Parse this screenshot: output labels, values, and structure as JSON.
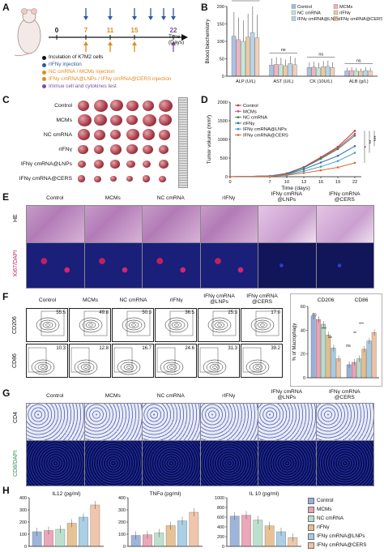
{
  "panels": {
    "A": "A",
    "B": "B",
    "C": "C",
    "D": "D",
    "E": "E",
    "F": "F",
    "G": "G",
    "H": "H"
  },
  "panelA": {
    "days": [
      "0",
      "7",
      "11",
      "15",
      "22"
    ],
    "axis_label": "Time\n(Days)",
    "time_label": "Time",
    "days_label": "(Days)",
    "legend": [
      {
        "text": "Inculation of K7M2 cells",
        "color": "#111111"
      },
      {
        "text": "rIFNγ injection",
        "color": "#2a5c9a"
      },
      {
        "text": "NC cmRNA / MCMs injection",
        "color": "#e38a1b"
      },
      {
        "text": "IFNγ cmRNA@LNPs / IFNγ cmRNA@CERS injection",
        "color": "#e38a1b"
      },
      {
        "text": "Immue cell and cytokines test",
        "color": "#7b4fa0"
      }
    ]
  },
  "groups": [
    "Control",
    "MCMs",
    "NC cmRNA",
    "rIFNγ",
    "IFNγ cmRNA@LNPs",
    "IFNγ cmRNA@CERS"
  ],
  "groupColors": [
    "#6a8fc9",
    "#e07a95",
    "#9ad0b5",
    "#d9a25c",
    "#7fb6d8",
    "#e8a97f"
  ],
  "panelB": {
    "ylabel": "Blood biochemistry",
    "legend": [
      "Control",
      "MCMs",
      "NC cmRNA",
      "rIFNγ",
      "IFNγ cmRNA@LNPs",
      "IFNγ cmRNA@CERS"
    ],
    "categories": [
      "ALP (U/L)",
      "AST (U/L)",
      "CK (10U/L)",
      "ALB (g/L)"
    ],
    "yticks": [
      "0",
      "50",
      "100",
      "150",
      "200"
    ],
    "ns": "ns",
    "chart_data": {
      "type": "bar",
      "categories": [
        "ALP",
        "AST",
        "CK",
        "ALB"
      ],
      "ylim": [
        0,
        200
      ],
      "series": [
        {
          "name": "Control",
          "values": [
            115,
            32,
            25,
            15
          ]
        },
        {
          "name": "MCMs",
          "values": [
            105,
            34,
            26,
            16
          ]
        },
        {
          "name": "NC cmRNA",
          "values": [
            100,
            33,
            24,
            15
          ]
        },
        {
          "name": "rIFNγ",
          "values": [
            112,
            30,
            27,
            14
          ]
        },
        {
          "name": "IFNγ cmRNA@LNPs",
          "values": [
            125,
            36,
            28,
            16
          ]
        },
        {
          "name": "IFNγ cmRNA@CERS",
          "values": [
            110,
            33,
            25,
            15
          ]
        }
      ]
    }
  },
  "panelC": {
    "rows": [
      "Control",
      "MCMs",
      "NC cmRNA",
      "rIFNγ",
      "IFNγ cmRNA@LNPs",
      "IFNγ cmRNA@CERS"
    ]
  },
  "panelD": {
    "ylabel": "Tumor volume (mm³)",
    "xlabel": "Time (days)",
    "xticks": [
      "0",
      "7",
      "10",
      "13",
      "16",
      "19",
      "22"
    ],
    "yticks": [
      "0",
      "500",
      "1000",
      "1500",
      "2000"
    ],
    "sig": [
      "*",
      "**",
      "***"
    ],
    "chart_data": {
      "type": "line",
      "x": [
        0,
        7,
        10,
        13,
        16,
        19,
        22
      ],
      "ylim": [
        0,
        2000
      ],
      "series": [
        {
          "name": "Control",
          "values": [
            0,
            20,
            90,
            260,
            520,
            800,
            1230
          ]
        },
        {
          "name": "MCMs",
          "values": [
            0,
            20,
            85,
            250,
            500,
            770,
            1150
          ]
        },
        {
          "name": "NC cmRNA",
          "values": [
            0,
            18,
            80,
            240,
            480,
            740,
            1100
          ]
        },
        {
          "name": "rIFNγ",
          "values": [
            0,
            18,
            70,
            200,
            380,
            560,
            820
          ]
        },
        {
          "name": "IFNγ cmRNA@LNPs",
          "values": [
            0,
            15,
            55,
            150,
            270,
            420,
            640
          ]
        },
        {
          "name": "IFNγ cmRNA@CERS",
          "values": [
            0,
            12,
            40,
            100,
            170,
            250,
            370
          ]
        }
      ]
    }
  },
  "panelE": {
    "cols": [
      "Control",
      "MCMs",
      "NC cmRNA",
      "rIFNγ",
      "IFNγ cmRNA\n@LNPs",
      "IFNγ cmRNA\n@CERS"
    ],
    "row1": "HE",
    "row2": "Ki67/DAPI"
  },
  "panelF": {
    "cols": [
      "Control",
      "MCMs",
      "NC cmRNA",
      "rIFNγ",
      "IFNγ cmRNA\n@LNPs",
      "IFNγ cmRNA\n@CERS"
    ],
    "row1": "CD206",
    "row2": "CD86",
    "cd206": [
      "55.5",
      "49.8",
      "50.3",
      "36.5",
      "25.3",
      "17.0"
    ],
    "cd86": [
      "10.3",
      "12.8",
      "16.7",
      "24.6",
      "31.3",
      "39.2"
    ],
    "bar_titles": [
      "CD206",
      "CD86"
    ],
    "ylabel": "% of Macrophagy",
    "yticks": [
      "0",
      "20",
      "40",
      "60"
    ],
    "sig": [
      "ns",
      "***",
      "**",
      "***",
      "**",
      "ns"
    ],
    "chart_data": {
      "type": "bar",
      "categories": [
        "CD206",
        "CD86"
      ],
      "ylim": [
        0,
        60
      ],
      "series": [
        {
          "name": "Control",
          "values": [
            52,
            11
          ]
        },
        {
          "name": "MCMs",
          "values": [
            49,
            13
          ]
        },
        {
          "name": "NC cmRNA",
          "values": [
            45,
            16
          ]
        },
        {
          "name": "rIFNγ",
          "values": [
            36,
            24
          ]
        },
        {
          "name": "IFNγ cmRNA@LNPs",
          "values": [
            25,
            31
          ]
        },
        {
          "name": "IFNγ cmRNA@CERS",
          "values": [
            16,
            38
          ]
        }
      ]
    }
  },
  "panelG": {
    "cols": [
      "Control",
      "MCMs",
      "NC cmRNA",
      "rIFNγ",
      "IFNγ cmRNA\n@LNPs",
      "IFNγ cmRNA\n@CERS"
    ],
    "row1": "CD4",
    "row2": "CD8/DAPI"
  },
  "panelH": {
    "titles": [
      "IL12 (pg/ml)",
      "TNFα (pg/ml)",
      "IL 10 (pg/ml)"
    ],
    "legend": [
      "Control",
      "MCMs",
      "NC cmRNA",
      "rIFNγ",
      "IFNγ cmRNA@LNPs",
      "IFNγ cmRNA@CERS"
    ],
    "yticks1": [
      "0",
      "100",
      "200",
      "300",
      "400"
    ],
    "yticks2": [
      "0",
      "100",
      "200",
      "300",
      "400"
    ],
    "yticks3": [
      "0",
      "200",
      "400",
      "600",
      "800",
      "1000"
    ],
    "chart_data": [
      {
        "type": "bar",
        "title": "IL12 (pg/ml)",
        "ylim": [
          0,
          400
        ],
        "series": [
          {
            "name": "values",
            "values": [
              120,
              130,
              140,
              190,
              240,
              340
            ]
          }
        ]
      },
      {
        "type": "bar",
        "title": "TNFα (pg/ml)",
        "ylim": [
          0,
          400
        ],
        "series": [
          {
            "name": "values",
            "values": [
              90,
              95,
              110,
              170,
              210,
              280
            ]
          }
        ]
      },
      {
        "type": "bar",
        "title": "IL 10 (pg/ml)",
        "ylim": [
          0,
          1000
        ],
        "series": [
          {
            "name": "values",
            "values": [
              620,
              640,
              540,
              420,
              300,
              180
            ]
          }
        ]
      }
    ]
  }
}
